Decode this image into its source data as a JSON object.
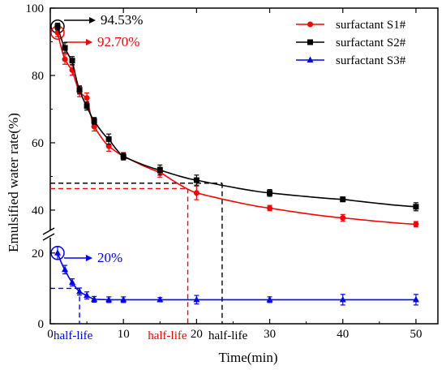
{
  "chart_data": {
    "type": "line",
    "title": "",
    "xlabel": "Time(min)",
    "ylabel": "Emulsified water rate(%)",
    "xlim": [
      0,
      53
    ],
    "xticks": [
      0,
      10,
      20,
      30,
      40,
      50
    ],
    "upper_ylim": [
      33,
      100
    ],
    "upper_yticks": [
      40,
      60,
      80,
      100
    ],
    "lower_ylim": [
      0,
      25
    ],
    "lower_yticks": [
      0,
      20
    ],
    "legend_position": "top-right",
    "grid": false,
    "series": [
      {
        "name": "surfactant S1#",
        "color": "#ff0000",
        "marker": "circle",
        "panel": "upper",
        "x": [
          1,
          2,
          3,
          4,
          5,
          6,
          8,
          10,
          15,
          20,
          30,
          40,
          50
        ],
        "y": [
          92.7,
          84.8,
          81.6,
          75.2,
          73.3,
          64.8,
          59.0,
          56.1,
          51.3,
          45.1,
          40.6,
          37.7,
          35.8
        ],
        "err": [
          1.2,
          1.5,
          1.5,
          1.5,
          1.5,
          1.3,
          1.5,
          1.0,
          1.5,
          2.0,
          0.8,
          1.0,
          0.8
        ]
      },
      {
        "name": "surfactant S2#",
        "color": "#000000",
        "marker": "square",
        "panel": "upper",
        "x": [
          1,
          2,
          3,
          4,
          5,
          6,
          8,
          10,
          15,
          20,
          30,
          40,
          50
        ],
        "y": [
          94.53,
          88.2,
          84.4,
          75.7,
          70.9,
          66.5,
          61.1,
          55.9,
          51.9,
          48.9,
          45.1,
          43.2,
          41.0
        ],
        "err": [
          1.0,
          1.5,
          1.2,
          1.2,
          1.2,
          1.0,
          1.5,
          1.0,
          1.5,
          1.5,
          1.0,
          0.7,
          1.2
        ]
      },
      {
        "name": "surfactant S3#",
        "color": "#0000ff",
        "marker": "triangle",
        "panel": "lower",
        "x": [
          1,
          2,
          3,
          4,
          5,
          6,
          8,
          10,
          15,
          20,
          30,
          40,
          50
        ],
        "y": [
          20.0,
          15.3,
          11.7,
          9.1,
          8.0,
          6.9,
          6.8,
          6.8,
          6.8,
          6.8,
          6.8,
          6.8,
          6.8
        ],
        "err": [
          1.8,
          1.2,
          1.0,
          1.0,
          1.0,
          0.8,
          0.8,
          0.8,
          0.6,
          1.2,
          0.8,
          1.5,
          1.5
        ]
      }
    ],
    "annotations": {
      "s2_initial": {
        "text": "94.53%",
        "color": "#000000",
        "x": 1,
        "y": 94.53
      },
      "s1_initial": {
        "text": "92.70%",
        "color": "#ff0000",
        "x": 1,
        "y": 92.7
      },
      "s3_initial": {
        "text": "20%",
        "color": "#0000ff",
        "x": 1,
        "y": 20.0
      }
    },
    "half_life": [
      {
        "label": "half-life",
        "color": "#0000ff",
        "x": 4.0,
        "y": 10.0,
        "panel": "lower"
      },
      {
        "label": "half-life",
        "color": "#ff0000",
        "x": 18.8,
        "y": 46.4,
        "panel": "upper"
      },
      {
        "label": "half-life",
        "color": "#000000",
        "x": 23.5,
        "y": 48.0,
        "panel": "upper"
      }
    ]
  }
}
